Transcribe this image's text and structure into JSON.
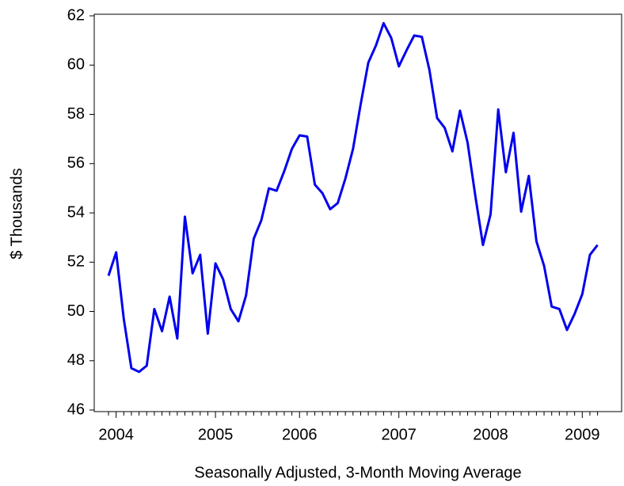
{
  "chart_data": {
    "type": "line",
    "ylabel": "$ Thousands",
    "xlabel": "Seasonally Adjusted, 3-Month Moving Average",
    "categories": [
      null,
      "2004",
      null,
      null,
      null,
      null,
      null,
      null,
      null,
      null,
      null,
      null,
      null,
      null,
      "2005",
      null,
      null,
      null,
      null,
      null,
      null,
      null,
      null,
      null,
      null,
      "2006",
      null,
      null,
      null,
      null,
      null,
      null,
      null,
      null,
      null,
      null,
      null,
      null,
      "2007",
      null,
      null,
      null,
      null,
      null,
      null,
      null,
      null,
      null,
      null,
      null,
      "2008",
      null,
      null,
      null,
      null,
      null,
      null,
      null,
      null,
      null,
      null,
      null,
      "2009",
      null,
      null
    ],
    "series": [
      {
        "name": "$ Thousands",
        "color": "#0000ee",
        "values": [
          51.45,
          52.4,
          49.7,
          47.7,
          47.55,
          47.8,
          50.1,
          49.2,
          50.6,
          48.9,
          53.85,
          51.55,
          52.3,
          49.1,
          51.95,
          51.3,
          50.1,
          49.6,
          50.65,
          52.95,
          53.7,
          55.0,
          54.9,
          55.7,
          56.6,
          57.15,
          57.1,
          55.15,
          54.8,
          54.15,
          54.4,
          55.4,
          56.6,
          58.4,
          60.1,
          60.8,
          61.7,
          61.1,
          59.95,
          60.6,
          61.2,
          61.15,
          59.8,
          57.85,
          57.45,
          56.5,
          58.15,
          56.85,
          54.7,
          52.7,
          53.95,
          58.2,
          55.65,
          57.25,
          54.05,
          55.5,
          52.85,
          51.85,
          50.2,
          50.1,
          49.25,
          49.9,
          50.7,
          52.3,
          52.7
        ]
      }
    ],
    "ylim": [
      46,
      62
    ],
    "yticks": [
      46,
      48,
      50,
      52,
      54,
      56,
      58,
      60,
      62
    ],
    "grid": false
  }
}
